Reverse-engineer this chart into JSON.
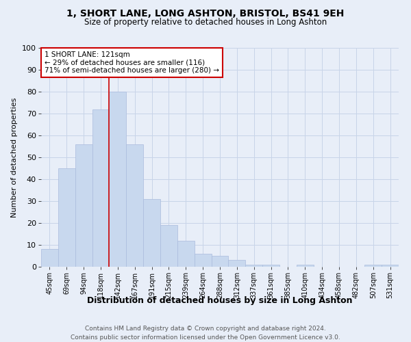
{
  "title": "1, SHORT LANE, LONG ASHTON, BRISTOL, BS41 9EH",
  "subtitle": "Size of property relative to detached houses in Long Ashton",
  "xlabel": "Distribution of detached houses by size in Long Ashton",
  "ylabel": "Number of detached properties",
  "categories": [
    "45sqm",
    "69sqm",
    "94sqm",
    "118sqm",
    "142sqm",
    "167sqm",
    "191sqm",
    "215sqm",
    "239sqm",
    "264sqm",
    "288sqm",
    "312sqm",
    "337sqm",
    "361sqm",
    "385sqm",
    "410sqm",
    "434sqm",
    "458sqm",
    "482sqm",
    "507sqm",
    "531sqm"
  ],
  "values": [
    8,
    45,
    56,
    72,
    80,
    56,
    31,
    19,
    12,
    6,
    5,
    3,
    1,
    1,
    0,
    1,
    0,
    0,
    0,
    1,
    1
  ],
  "bar_color": "#c8d8ee",
  "bar_edge_color": "#aabbdd",
  "grid_color": "#c8d4e8",
  "property_line_x": 3.5,
  "annotation_text": "1 SHORT LANE: 121sqm\n← 29% of detached houses are smaller (116)\n71% of semi-detached houses are larger (280) →",
  "annotation_box_color": "#ffffff",
  "annotation_box_edge": "#cc0000",
  "annotation_text_color": "#000000",
  "property_line_color": "#cc0000",
  "footer": "Contains HM Land Registry data © Crown copyright and database right 2024.\nContains public sector information licensed under the Open Government Licence v3.0.",
  "ylim": [
    0,
    100
  ],
  "yticks": [
    0,
    10,
    20,
    30,
    40,
    50,
    60,
    70,
    80,
    90,
    100
  ],
  "background_color": "#e8eef8",
  "plot_background": "#e8eef8"
}
